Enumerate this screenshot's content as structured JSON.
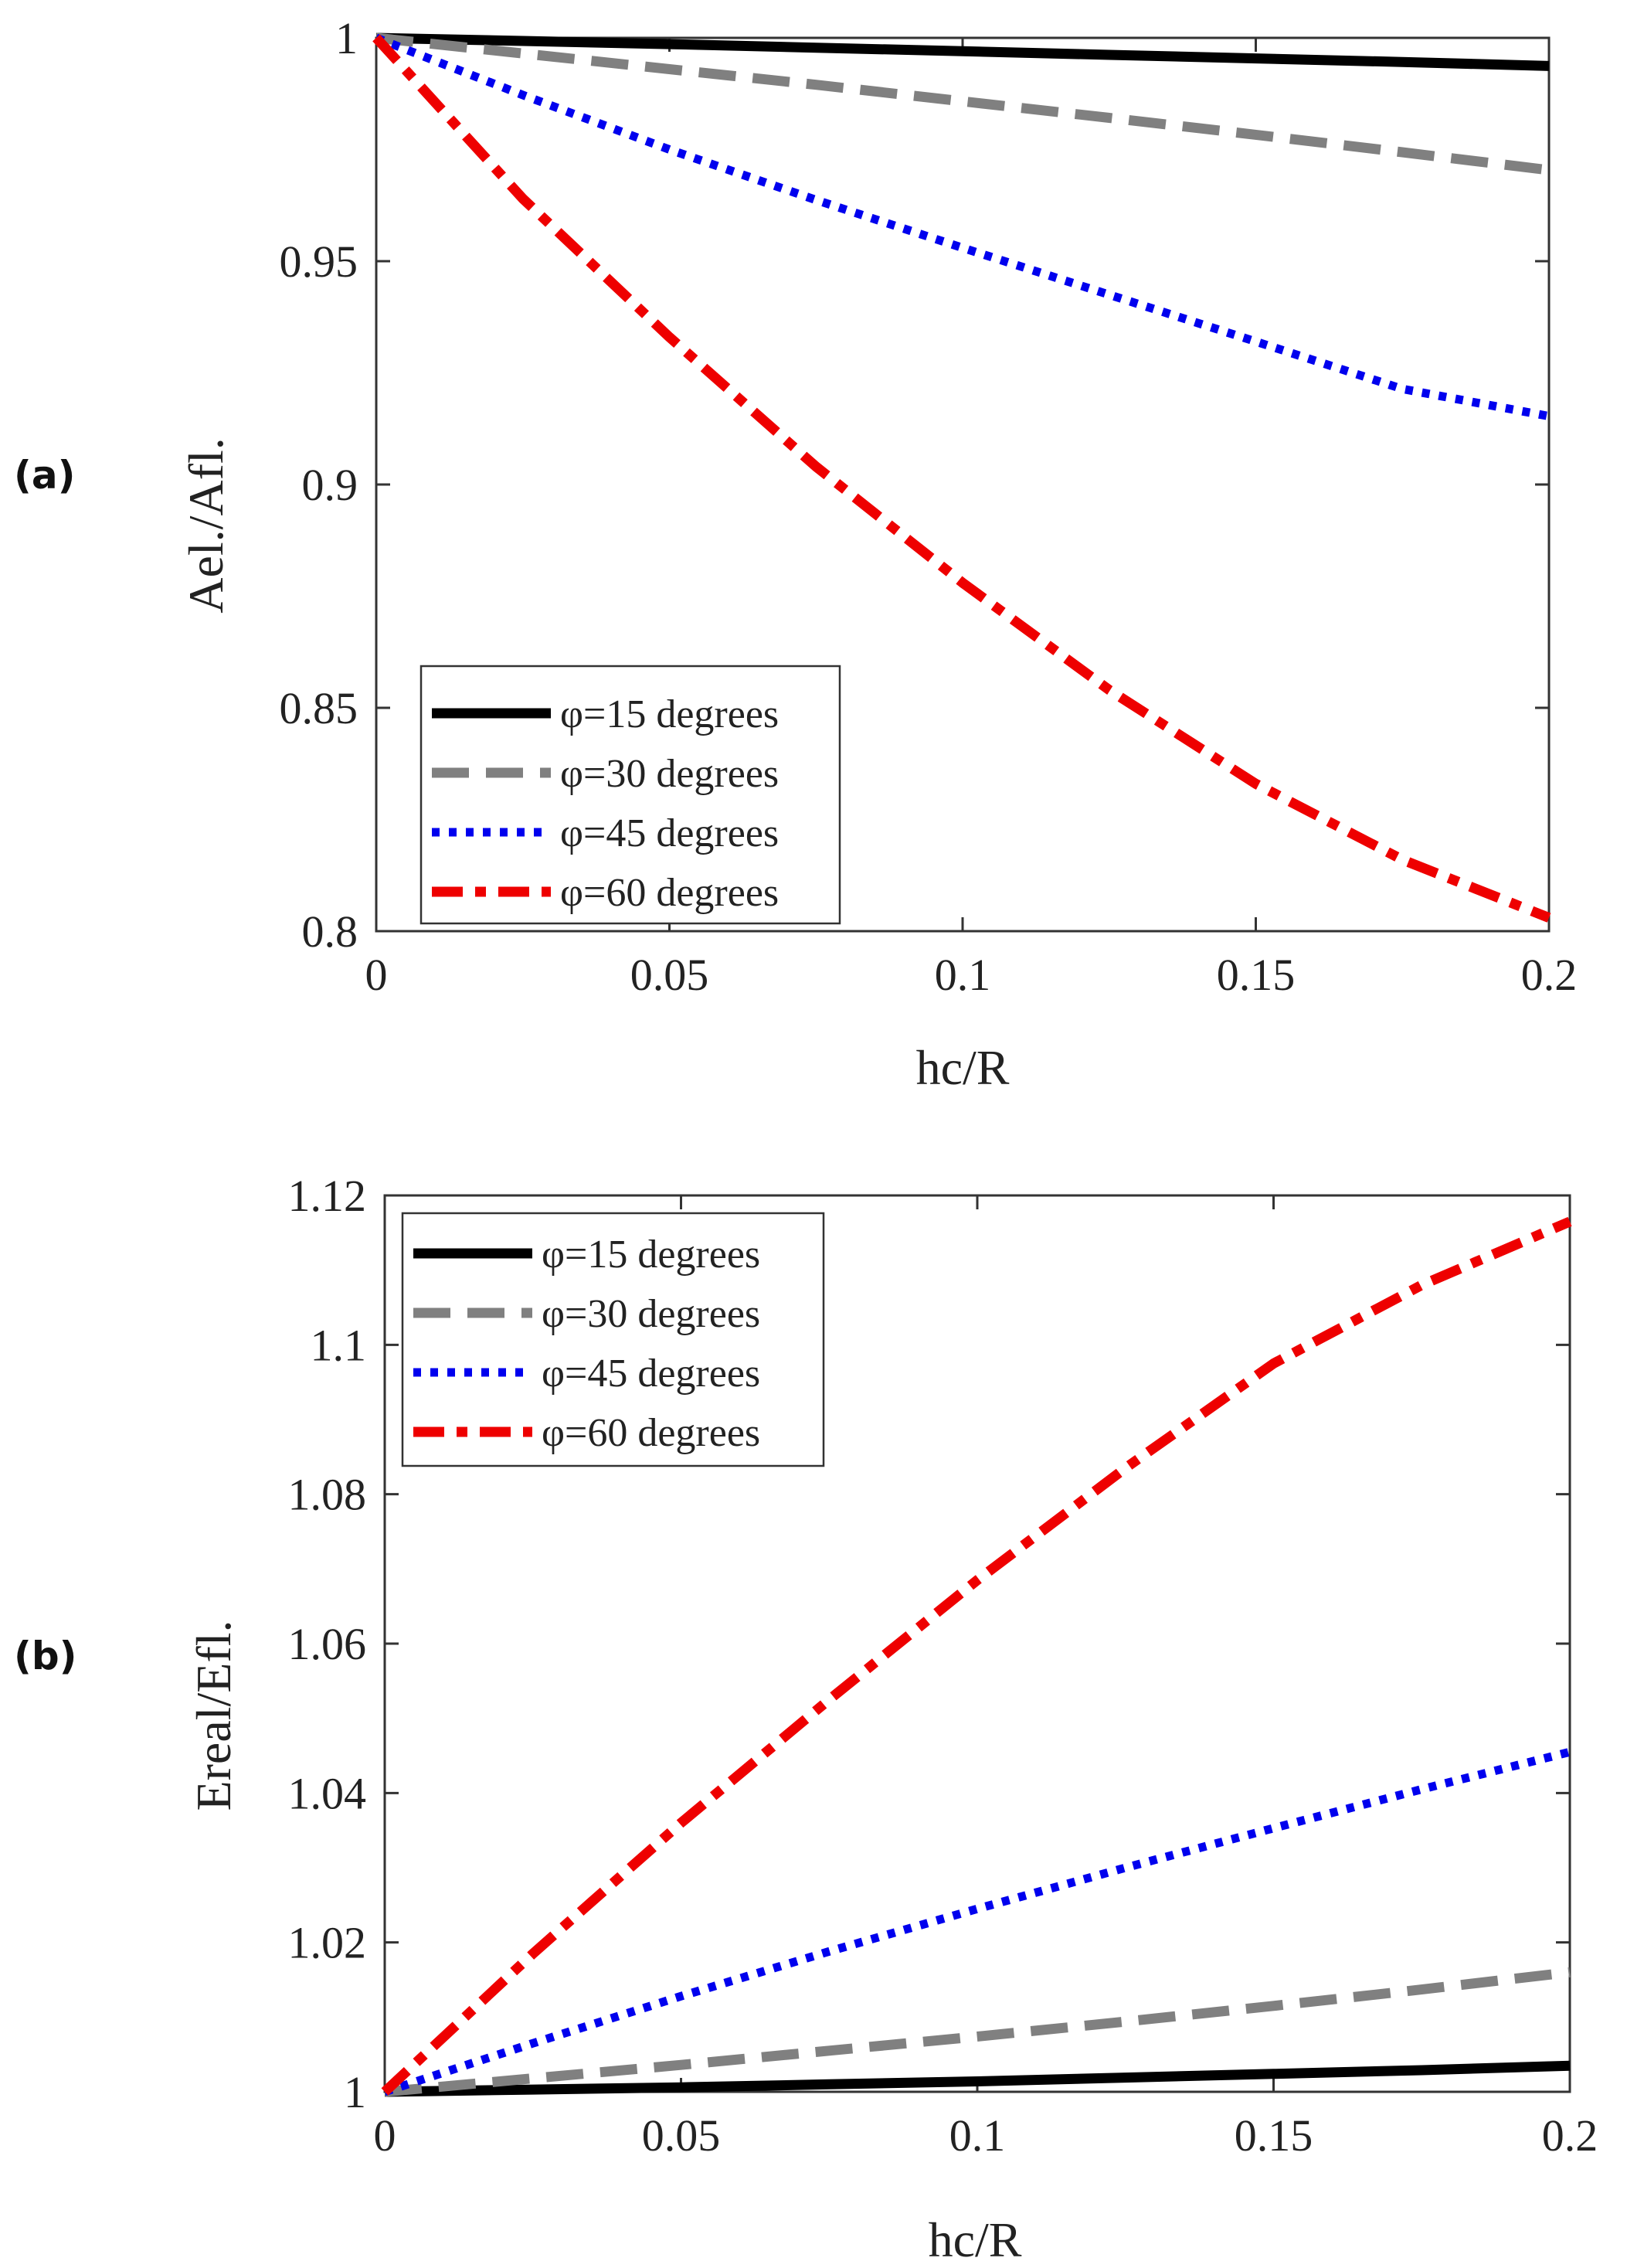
{
  "chart_data": [
    {
      "type": "line",
      "panel_label": "(a)",
      "title": "",
      "xlabel": "hc/R",
      "ylabel": "Ael./Afl.",
      "xlim": [
        0,
        0.2
      ],
      "ylim": [
        0.8,
        1.0
      ],
      "x_ticks": [
        0,
        0.05,
        0.1,
        0.15,
        0.2
      ],
      "x_tick_labels": [
        "0",
        "0.05",
        "0.1",
        "0.15",
        "0.2"
      ],
      "y_ticks": [
        0.8,
        0.85,
        0.9,
        0.95,
        1.0
      ],
      "y_tick_labels": [
        "0.8",
        "0.85",
        "0.9",
        "0.95",
        "1"
      ],
      "grid": false,
      "legend_position": "bottom-left",
      "x": [
        0,
        0.025,
        0.05,
        0.075,
        0.1,
        0.125,
        0.15,
        0.175,
        0.2
      ],
      "series": [
        {
          "name": "φ=15 degrees",
          "color": "#000000",
          "style": "solid",
          "values": [
            1.0,
            0.9993,
            0.9986,
            0.9978,
            0.997,
            0.9962,
            0.9954,
            0.9946,
            0.9937
          ]
        },
        {
          "name": "φ=30 degrees",
          "color": "#808080",
          "style": "dashed",
          "values": [
            1.0,
            0.9965,
            0.993,
            0.9895,
            0.9858,
            0.9821,
            0.9783,
            0.9744,
            0.9704
          ]
        },
        {
          "name": "φ=45 degrees",
          "color": "#0000ee",
          "style": "dotted",
          "values": [
            1.0,
            0.9872,
            0.975,
            0.9637,
            0.953,
            0.9425,
            0.932,
            0.9214,
            0.9153
          ]
        },
        {
          "name": "φ=60 degrees",
          "color": "#ee0000",
          "style": "dashdot",
          "values": [
            1.0,
            0.964,
            0.933,
            0.904,
            0.878,
            0.854,
            0.833,
            0.816,
            0.803
          ]
        }
      ]
    },
    {
      "type": "line",
      "panel_label": "(b)",
      "title": "",
      "xlabel": "hc/R",
      "ylabel": "Ereal/Efl.",
      "xlim": [
        0,
        0.2
      ],
      "ylim": [
        1.0,
        1.12
      ],
      "x_ticks": [
        0,
        0.05,
        0.1,
        0.15,
        0.2
      ],
      "x_tick_labels": [
        "0",
        "0.05",
        "0.1",
        "0.15",
        "0.2"
      ],
      "y_ticks": [
        1.0,
        1.02,
        1.04,
        1.06,
        1.08,
        1.1,
        1.12
      ],
      "y_tick_labels": [
        "1",
        "1.02",
        "1.04",
        "1.06",
        "1.08",
        "1.1",
        "1.12"
      ],
      "grid": false,
      "legend_position": "top-left",
      "x": [
        0,
        0.025,
        0.05,
        0.075,
        0.1,
        0.125,
        0.15,
        0.175,
        0.2
      ],
      "series": [
        {
          "name": "φ=15 degrees",
          "color": "#000000",
          "style": "solid",
          "values": [
            1.0,
            1.0003,
            1.0006,
            1.001,
            1.0014,
            1.0019,
            1.0024,
            1.0029,
            1.0035
          ]
        },
        {
          "name": "φ=30 degrees",
          "color": "#808080",
          "style": "dashed",
          "values": [
            1.0,
            1.0018,
            1.0036,
            1.0055,
            1.0074,
            1.0094,
            1.0115,
            1.0137,
            1.016
          ]
        },
        {
          "name": "φ=45 degrees",
          "color": "#0000ee",
          "style": "dotted",
          "values": [
            1.0,
            1.0065,
            1.0128,
            1.0188,
            1.0245,
            1.03,
            1.0353,
            1.0405,
            1.0455
          ]
        },
        {
          "name": "φ=60 degrees",
          "color": "#ee0000",
          "style": "dashdot",
          "values": [
            1.0,
            1.0185,
            1.036,
            1.0525,
            1.0685,
            1.0835,
            1.0975,
            1.108,
            1.1165
          ]
        }
      ]
    }
  ]
}
